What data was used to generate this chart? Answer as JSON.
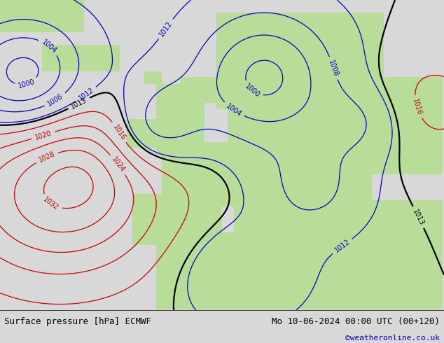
{
  "title_left": "Surface pressure [hPa] ECMWF",
  "title_right": "Mo 10-06-2024 00:00 UTC (00+120)",
  "credit": "©weatheronline.co.uk",
  "bg_ocean_color": "#d8dde8",
  "land_color_rgb": [
    0.72,
    0.87,
    0.6
  ],
  "gray_land_rgb": [
    0.7,
    0.7,
    0.7
  ],
  "bottom_bar_color": "#d8d8d8",
  "isobar_color_low": "#0000cc",
  "isobar_color_high": "#cc0000",
  "isobar_color_1013": "#000000",
  "label_fontsize": 7,
  "title_fontsize": 9,
  "credit_fontsize": 8
}
